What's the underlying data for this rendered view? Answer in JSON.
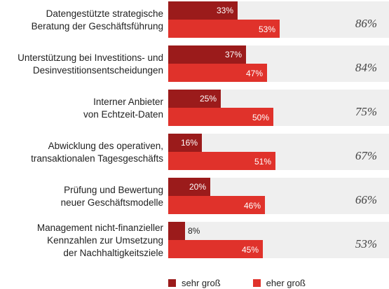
{
  "chart_data": {
    "type": "bar",
    "orientation": "horizontal",
    "categories": [
      [
        "Datengestützte strategische",
        "Beratung der Geschäftsführung"
      ],
      [
        "Unterstützung bei Investitions- und",
        "Desinvestitionsentscheidungen"
      ],
      [
        "Interner Anbieter",
        "von Echtzeit-Daten"
      ],
      [
        "Abwicklung des operativen,",
        "transaktionalen Tagesgeschäfts"
      ],
      [
        "Prüfung und Bewertung",
        "neuer Geschäftsmodelle"
      ],
      [
        "Management nicht-finanzieller",
        "Kennzahlen zur Umsetzung",
        "der Nachhaltigkeitsziele"
      ]
    ],
    "series": [
      {
        "name": "sehr groß",
        "color": "#9b1b1b",
        "values": [
          33,
          37,
          25,
          16,
          20,
          8
        ],
        "labels": [
          "33%",
          "37%",
          "25%",
          "16%",
          "20%",
          "8%"
        ]
      },
      {
        "name": "eher groß",
        "color": "#e0322b",
        "values": [
          53,
          47,
          50,
          51,
          46,
          45
        ],
        "labels": [
          "53%",
          "47%",
          "50%",
          "51%",
          "46%",
          "45%"
        ]
      }
    ],
    "totals": [
      "86%",
      "84%",
      "75%",
      "67%",
      "66%",
      "53%"
    ],
    "xlim": [
      0,
      100
    ],
    "grid": false,
    "legend_position": "bottom"
  },
  "colors": {
    "row_background": "#efefef",
    "dark_red": "#9b1b1b",
    "red": "#e0322b"
  }
}
